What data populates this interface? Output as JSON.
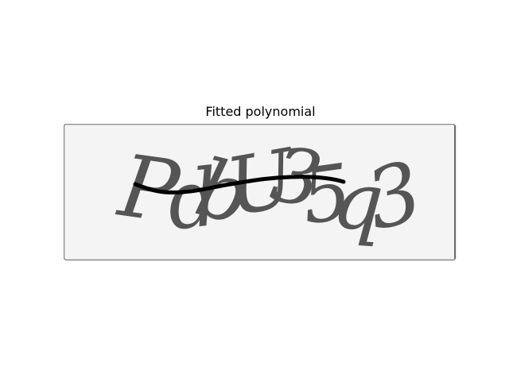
{
  "figure": {
    "title": "Fitted polynomial"
  },
  "captcha": {
    "text": "PdbU35q3",
    "background_color": "#f4f4f4",
    "border_color": "#888888",
    "glyph_color": "#555555",
    "curve_color": "#000000"
  }
}
